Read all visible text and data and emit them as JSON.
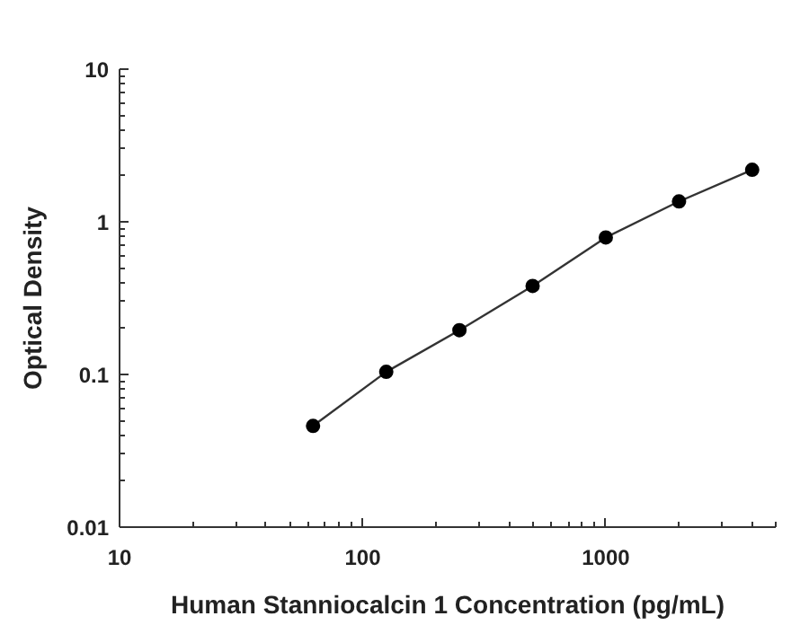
{
  "chart_data": {
    "type": "line",
    "xlabel": "Human Stanniocalcin 1 Concentration (pg/mL)",
    "ylabel": "Optical Density",
    "log": "xy",
    "marker": "circle",
    "line_style": "solid",
    "grid": false,
    "x": [
      62.5,
      125,
      250,
      500,
      1000,
      2000,
      4000
    ],
    "series": [
      {
        "color": "#000000",
        "values": [
          0.046,
          0.104,
          0.195,
          0.38,
          0.79,
          1.36,
          2.19
        ]
      }
    ],
    "xlim": [
      10,
      5000
    ],
    "xticks": [
      10,
      100,
      1000,
      {
        "value": 20,
        "label": null
      },
      {
        "value": 30,
        "label": null
      },
      {
        "value": 40,
        "label": null
      },
      {
        "value": 50,
        "label": null
      },
      {
        "value": 60,
        "label": null
      },
      {
        "value": 70,
        "label": null
      },
      {
        "value": 80,
        "label": null
      },
      {
        "value": 90,
        "label": null
      },
      {
        "value": 200,
        "label": null
      },
      {
        "value": 300,
        "label": null
      },
      {
        "value": 400,
        "label": null
      },
      {
        "value": 500,
        "label": null
      },
      {
        "value": 600,
        "label": null
      },
      {
        "value": 700,
        "label": null
      },
      {
        "value": 800,
        "label": null
      },
      {
        "value": 900,
        "label": null
      },
      {
        "value": 2000,
        "label": null
      },
      {
        "value": 3000,
        "label": null
      },
      {
        "value": 4000,
        "label": null
      },
      {
        "value": 5000,
        "label": null
      }
    ],
    "ylim": [
      0.01,
      10
    ],
    "yticks": [
      0.01,
      0.1,
      1,
      10,
      {
        "value": 0.02,
        "label": null
      },
      {
        "value": 0.03,
        "label": null
      },
      {
        "value": 0.04,
        "label": null
      },
      {
        "value": 0.05,
        "label": null
      },
      {
        "value": 0.06,
        "label": null
      },
      {
        "value": 0.07,
        "label": null
      },
      {
        "value": 0.08,
        "label": null
      },
      {
        "value": 0.09,
        "label": null
      },
      {
        "value": 0.2,
        "label": null
      },
      {
        "value": 0.3,
        "label": null
      },
      {
        "value": 0.4,
        "label": null
      },
      {
        "value": 0.5,
        "label": null
      },
      {
        "value": 0.6,
        "label": null
      },
      {
        "value": 0.7,
        "label": null
      },
      {
        "value": 0.8,
        "label": null
      },
      {
        "value": 0.9,
        "label": null
      },
      {
        "value": 2,
        "label": null
      },
      {
        "value": 3,
        "label": null
      },
      {
        "value": 4,
        "label": null
      },
      {
        "value": 5,
        "label": null
      },
      {
        "value": 6,
        "label": null
      },
      {
        "value": 7,
        "label": null
      },
      {
        "value": 8,
        "label": null
      },
      {
        "value": 9,
        "label": null
      }
    ]
  }
}
